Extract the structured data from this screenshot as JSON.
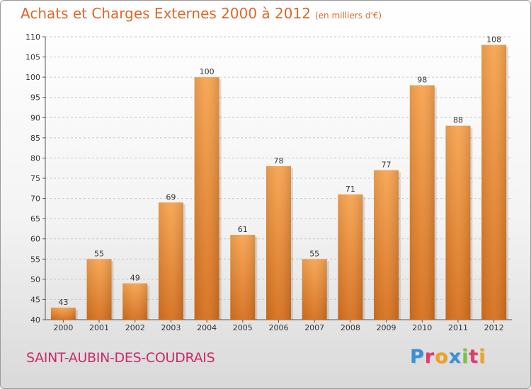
{
  "title": "Achats et Charges Externes 2000 à 2012",
  "subtitle": "(en milliers d'€)",
  "commune": "SAINT-AUBIN-DES-COUDRAIS",
  "logo": {
    "letters": [
      "P",
      "r",
      "o",
      "x",
      "i",
      "t",
      "i"
    ],
    "colors": [
      "#3a8fd8",
      "#e23a6e",
      "#f3a11c",
      "#3a8fd8",
      "#7cc242",
      "#e23a6e",
      "#f3a11c"
    ]
  },
  "colors": {
    "bar_light": "#f7a450",
    "bar_dark": "#d6701e",
    "title": "#e0672a",
    "commune": "#cc2a6a"
  },
  "chart_data": {
    "type": "bar",
    "title": "Achats et Charges Externes 2000 à 2012",
    "subtitle": "(en milliers d'€)",
    "categories": [
      "2000",
      "2001",
      "2002",
      "2003",
      "2004",
      "2005",
      "2006",
      "2007",
      "2008",
      "2009",
      "2010",
      "2011",
      "2012"
    ],
    "values": [
      43,
      55,
      49,
      69,
      100,
      61,
      78,
      55,
      71,
      77,
      98,
      88,
      108
    ],
    "ylim": [
      40,
      110
    ],
    "yticks": [
      40,
      45,
      50,
      55,
      60,
      65,
      70,
      75,
      80,
      85,
      90,
      95,
      100,
      105,
      110
    ],
    "grid": true,
    "xlabel": "",
    "ylabel": ""
  }
}
